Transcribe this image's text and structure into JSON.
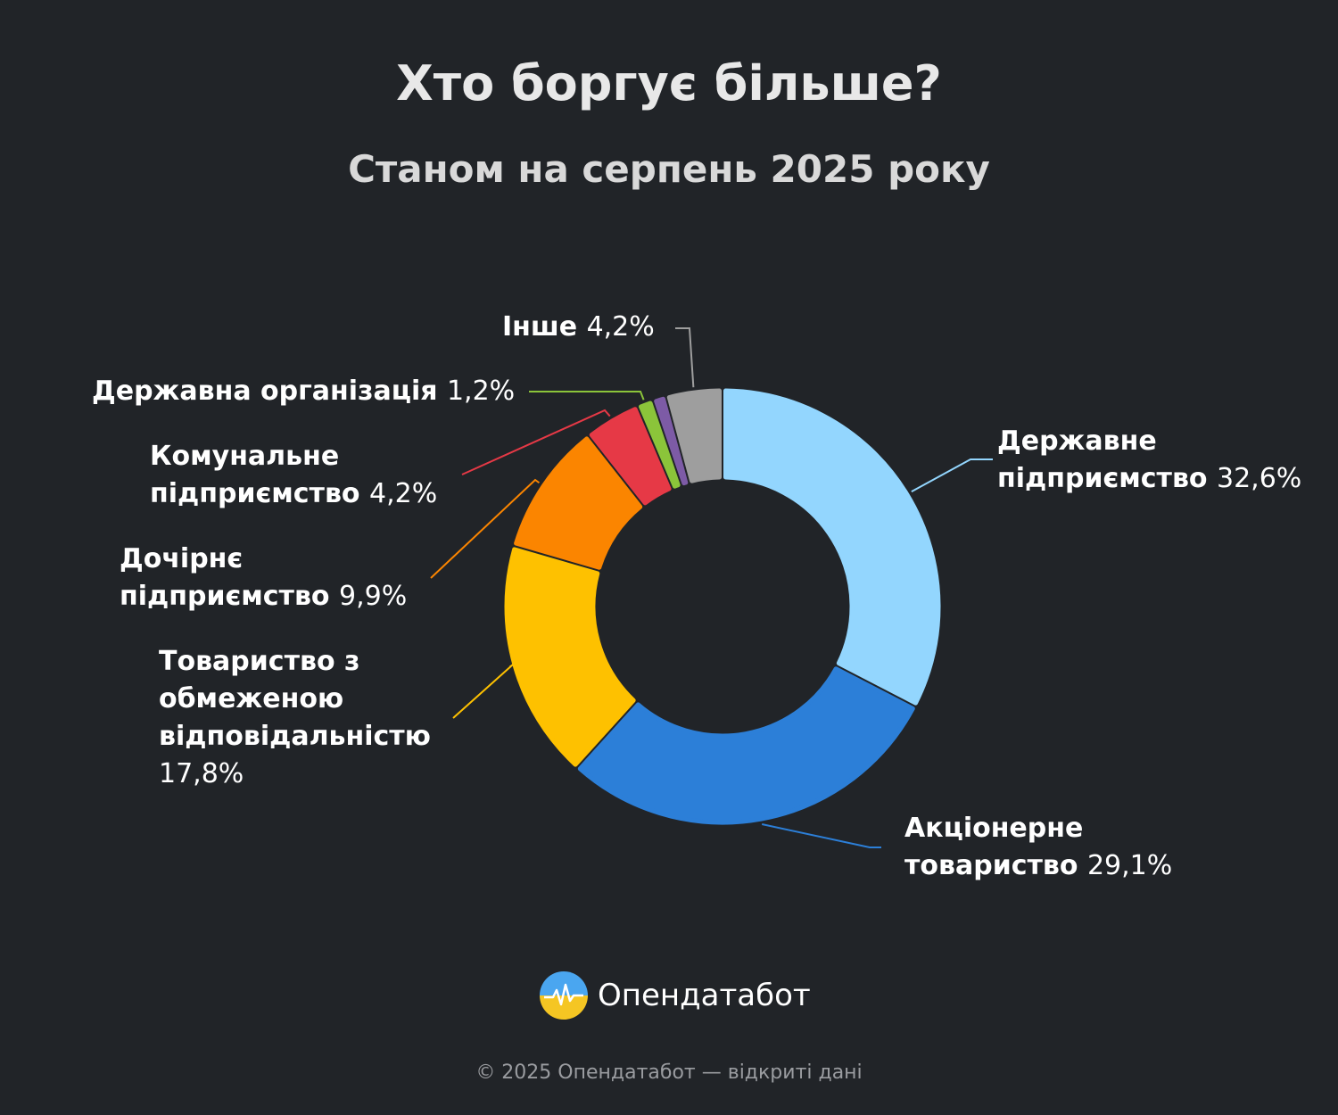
{
  "header": {
    "title": "Хто боргує більше?",
    "subtitle": "Станом на серпень 2025 року"
  },
  "chart_data": {
    "type": "pie",
    "variant": "donut",
    "categories": [
      "Державне підприємство",
      "Акціонерне товариство",
      "Товариство з обмеженою відповідальністю",
      "Дочірнє підприємство",
      "Комунальне підприємство",
      "Державна організація",
      "Інше"
    ],
    "values": [
      32.6,
      29.1,
      17.8,
      9.9,
      4.2,
      1.2,
      4.2
    ],
    "value_labels": [
      "32,6%",
      "29,1%",
      "17,8%",
      "9,9%",
      "4,2%",
      "1,2%",
      "4,2%"
    ],
    "colors": [
      "#93d6fe",
      "#2c7fd8",
      "#fec100",
      "#fb8500",
      "#e63946",
      "#8bc43a",
      "#9e9e9e"
    ],
    "extra_slice": {
      "value": 1.0,
      "color": "#7d5ba6"
    },
    "legend": "none"
  },
  "labels": [
    {
      "lines": [
        "Державне",
        "підприємство"
      ],
      "pct": "32,6%"
    },
    {
      "lines": [
        "Акціонерне",
        "товариство"
      ],
      "pct": "29,1%"
    },
    {
      "lines": [
        "Товариство з",
        "обмеженою",
        "відповідальністю"
      ],
      "pct": "17,8%"
    },
    {
      "lines": [
        "Дочірнє",
        "підприємство"
      ],
      "pct": "9,9%"
    },
    {
      "lines": [
        "Комунальне",
        "підприємство"
      ],
      "pct": "4,2%"
    },
    {
      "lines": [
        "Державна організація"
      ],
      "pct": "1,2%"
    },
    {
      "lines": [
        "Інше"
      ],
      "pct": "4,2%"
    }
  ],
  "brand": {
    "name": "Опендатабот",
    "icon": "opendatabot-logo-icon"
  },
  "footer": {
    "text": "© 2025 Опендатабот — відкриті дані"
  }
}
